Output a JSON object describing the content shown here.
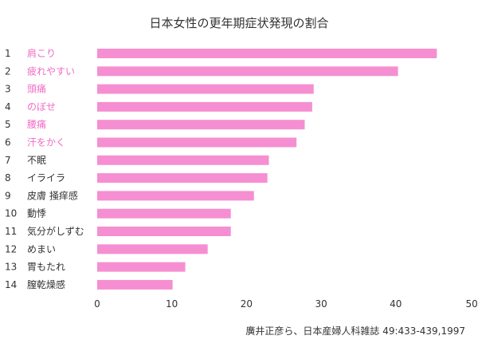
{
  "chart_data": {
    "type": "bar",
    "orientation": "horizontal",
    "title": "日本女性の更年期症状発現の割合",
    "source": "廣井正彦ら、日本産婦人科雑誌 49:433-439,1997",
    "ranks": [
      "1",
      "2",
      "3",
      "4",
      "5",
      "6",
      "7",
      "8",
      "9",
      "10",
      "11",
      "12",
      "13",
      "14"
    ],
    "categories": [
      "肩こり",
      "疲れやすい",
      "頭痛",
      "のぼせ",
      "腰痛",
      "汗をかく",
      "不眠",
      "イライラ",
      "皮膚 掻痒感",
      "動悸",
      "気分がしずむ",
      "めまい",
      "胃もたれ",
      "膣乾燥感"
    ],
    "values": [
      45.5,
      40.3,
      29.0,
      28.8,
      27.8,
      26.7,
      23.0,
      22.8,
      21.0,
      17.9,
      17.9,
      14.8,
      11.8,
      10.1
    ],
    "highlight_count": 6,
    "xlim": [
      0,
      50
    ],
    "xticks": [
      "0",
      "10",
      "20",
      "30",
      "40",
      "50(%)"
    ],
    "grid": false,
    "colors": {
      "bar": "#f58fd2",
      "highlight_label": "#f06cc6",
      "label": "#333333"
    }
  }
}
